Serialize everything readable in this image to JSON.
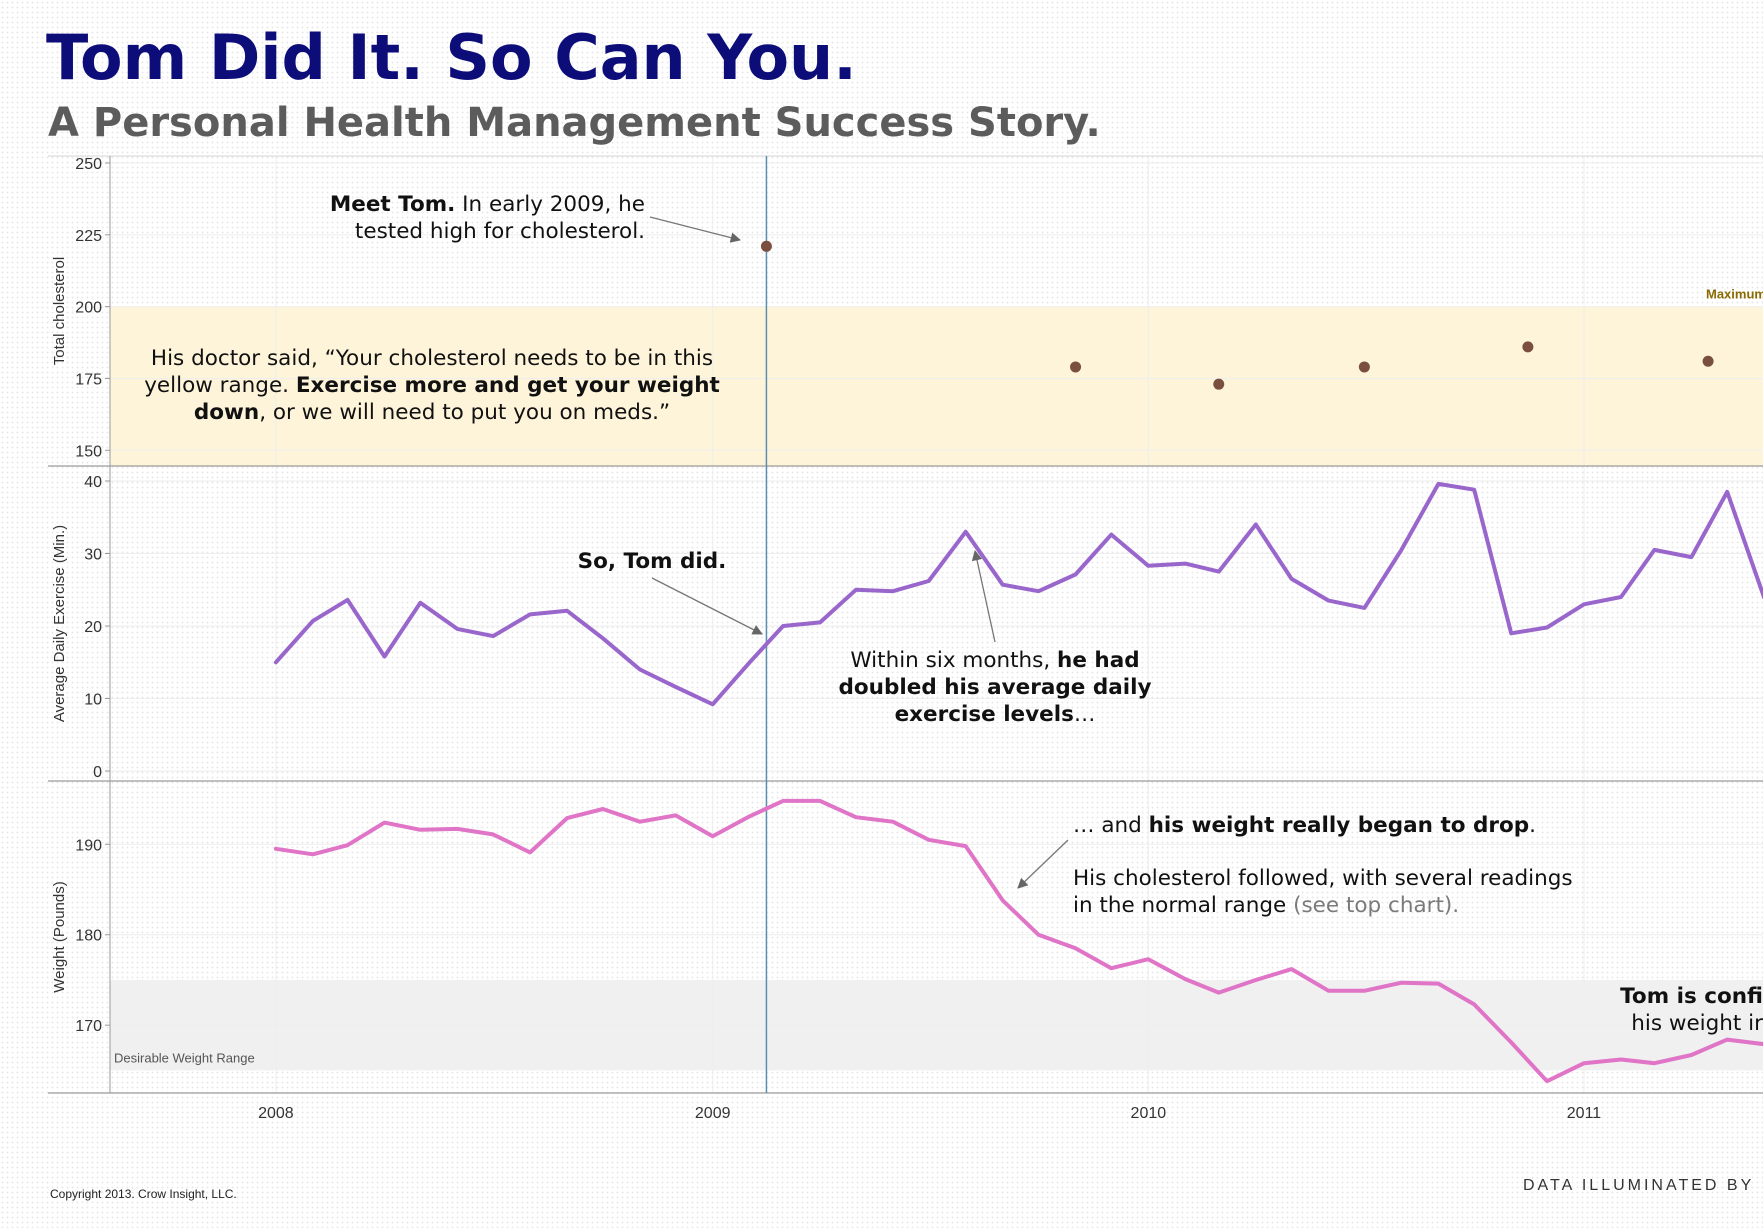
{
  "header": {
    "title": "Tom Did It. So Can You.",
    "subtitle": "A Personal Health Management Success Story."
  },
  "footer": {
    "copyright": "Copyright 2013. Crow Insight, LLC.",
    "credit": "DATA ILLUMINATED BY"
  },
  "colors": {
    "title": "#0d0d7a",
    "subtitle": "#5c5c5c",
    "cholesterol_points": "#7a4f3f",
    "exercise_line": "#9966cc",
    "weight_line": "#e074c6",
    "cholesterol_band": "#fdf4da",
    "weight_band": "#f0f0f0",
    "marker_line": "#5b8fb0"
  },
  "chart_data": {
    "type": "line",
    "shared_x": {
      "kind": "date",
      "range": [
        "2007-08-15",
        "2011-05-31"
      ],
      "tick_labels": [
        "2008",
        "2009",
        "2010",
        "2011"
      ],
      "tick_values": [
        "2008-01-01",
        "2009-01-01",
        "2010-01-01",
        "2011-01-01"
      ],
      "vertical_marker": "2009-02-15"
    },
    "panels": [
      {
        "id": "cholesterol",
        "type": "scatter",
        "ylabel": "Total cholesterol",
        "ylim": [
          148,
          250
        ],
        "yticks": [
          150,
          175,
          200,
          225,
          250
        ],
        "band": {
          "from": 150,
          "to": 200
        },
        "reference_label": "Maximum",
        "series": [
          {
            "x": [
              "2009-02-15",
              "2009-11-01",
              "2010-03-01",
              "2010-07-01",
              "2010-11-15",
              "2011-04-15"
            ],
            "values": [
              221,
              179,
              173,
              179,
              186,
              181
            ]
          }
        ],
        "annotations": [
          {
            "id": "meet-tom",
            "lines": [
              [
                {
                  "text": "Meet Tom.",
                  "bold": true
                },
                {
                  "text": " In early 2009, he"
                }
              ],
              [
                {
                  "text": "tested high for cholesterol."
                }
              ]
            ]
          },
          {
            "id": "doctor-said",
            "lines": [
              [
                {
                  "text": "His doctor said, “Your cholesterol needs to be in this"
                }
              ],
              [
                {
                  "text": "yellow range. "
                },
                {
                  "text": "Exercise more and get your weight",
                  "bold": true
                }
              ],
              [
                {
                  "text": "down",
                  "bold": true
                },
                {
                  "text": ", or we will need to put you on meds.”"
                }
              ]
            ]
          }
        ]
      },
      {
        "id": "exercise",
        "type": "line",
        "ylabel": "Average Daily Exercise (Min.)",
        "ylim": [
          0,
          40
        ],
        "yticks": [
          0,
          10,
          20,
          30,
          40
        ],
        "series": [
          {
            "x": [
              "2008-01-01",
              "2008-02-01",
              "2008-03-01",
              "2008-04-01",
              "2008-05-01",
              "2008-06-01",
              "2008-07-01",
              "2008-08-01",
              "2008-09-01",
              "2008-10-01",
              "2008-11-01",
              "2008-12-01",
              "2009-01-01",
              "2009-02-01",
              "2009-03-01",
              "2009-04-01",
              "2009-05-01",
              "2009-06-01",
              "2009-07-01",
              "2009-08-01",
              "2009-09-01",
              "2009-10-01",
              "2009-11-01",
              "2009-12-01",
              "2010-01-01",
              "2010-02-01",
              "2010-03-01",
              "2010-04-01",
              "2010-05-01",
              "2010-06-01",
              "2010-07-01",
              "2010-08-01",
              "2010-09-01",
              "2010-10-01",
              "2010-11-01",
              "2010-12-01",
              "2011-01-01",
              "2011-02-01",
              "2011-03-01",
              "2011-04-01",
              "2011-05-01",
              "2011-06-01"
            ],
            "values": [
              15,
              20.7,
              23.6,
              15.8,
              23.2,
              19.6,
              18.6,
              21.6,
              22.1,
              18.3,
              14,
              11.6,
              9.2,
              15,
              20,
              20.5,
              25,
              24.8,
              26.2,
              33,
              25.7,
              24.8,
              27.1,
              32.6,
              28.3,
              28.6,
              27.5,
              34,
              26.5,
              23.5,
              22.5,
              30.5,
              39.6,
              38.8,
              19,
              19.8,
              23,
              24,
              30.5,
              29.5,
              38.5,
              23.9
            ]
          }
        ],
        "annotations": [
          {
            "id": "so-tom-did",
            "lines": [
              [
                {
                  "text": "So, Tom did.",
                  "bold": true
                }
              ]
            ]
          },
          {
            "id": "within-six-months",
            "lines": [
              [
                {
                  "text": "Within six months, "
                },
                {
                  "text": "he had",
                  "bold": true
                }
              ],
              [
                {
                  "text": "doubled his average daily",
                  "bold": true
                }
              ],
              [
                {
                  "text": "exercise levels",
                  "bold": true
                },
                {
                  "text": "…"
                }
              ]
            ]
          }
        ]
      },
      {
        "id": "weight",
        "type": "line",
        "ylabel": "Weight (Pounds)",
        "ylim": [
          162.5,
          197
        ],
        "yticks": [
          170,
          180,
          190
        ],
        "band": {
          "from": 165,
          "to": 175,
          "label": "Desirable Weight Range"
        },
        "series": [
          {
            "x": [
              "2008-01-01",
              "2008-02-01",
              "2008-03-01",
              "2008-04-01",
              "2008-05-01",
              "2008-06-01",
              "2008-07-01",
              "2008-08-01",
              "2008-09-01",
              "2008-10-01",
              "2008-11-01",
              "2008-12-01",
              "2009-01-01",
              "2009-02-01",
              "2009-03-01",
              "2009-04-01",
              "2009-05-01",
              "2009-06-01",
              "2009-07-01",
              "2009-08-01",
              "2009-09-01",
              "2009-10-01",
              "2009-11-01",
              "2009-12-01",
              "2010-01-01",
              "2010-02-01",
              "2010-03-01",
              "2010-04-01",
              "2010-05-01",
              "2010-06-01",
              "2010-07-01",
              "2010-08-01",
              "2010-09-01",
              "2010-10-01",
              "2010-11-01",
              "2010-12-01",
              "2011-01-01",
              "2011-02-01",
              "2011-03-01",
              "2011-04-01",
              "2011-05-01",
              "2011-06-01"
            ],
            "values": [
              189.5,
              188.9,
              189.9,
              192.4,
              191.6,
              191.7,
              191.1,
              189.1,
              192.9,
              193.9,
              192.5,
              193.2,
              190.9,
              193.1,
              194.8,
              194.8,
              193,
              192.5,
              190.5,
              189.8,
              183.8,
              180,
              178.5,
              176.3,
              177.3,
              175.1,
              173.6,
              175,
              176.2,
              173.8,
              173.8,
              174.7,
              174.6,
              172.3,
              168.1,
              163.8,
              165.8,
              166.2,
              165.8,
              166.7,
              168.4,
              167.9
            ]
          }
        ],
        "annotations": [
          {
            "id": "weight-drop",
            "lines": [
              [
                {
                  "text": "… and "
                },
                {
                  "text": "his weight really began to drop",
                  "bold": true
                },
                {
                  "text": "."
                }
              ]
            ]
          },
          {
            "id": "cholesterol-followed",
            "lines": [
              [
                {
                  "text": "His cholesterol followed, with several readings"
                }
              ],
              [
                {
                  "text": "in the normal range "
                },
                {
                  "text": "(see top chart).",
                  "muted": true
                }
              ]
            ]
          },
          {
            "id": "tom-confident",
            "lines": [
              [
                {
                  "text": "Tom is confi",
                  "bold": true
                }
              ],
              [
                {
                  "text": "his weight ir"
                }
              ]
            ]
          }
        ]
      }
    ]
  }
}
